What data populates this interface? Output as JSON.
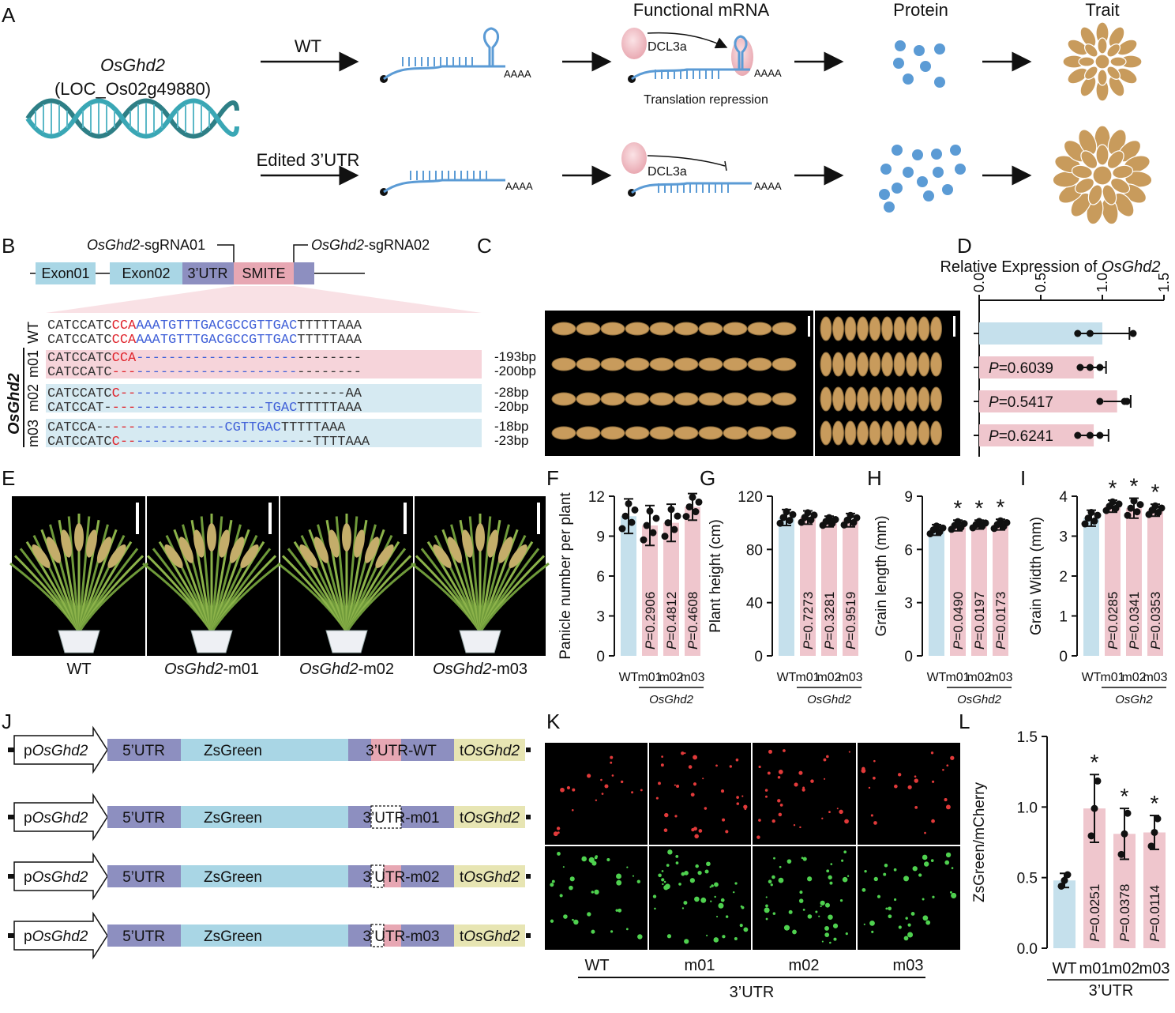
{
  "colors": {
    "blue": "#5b9bd5",
    "wt_bar": "#c5e0ec",
    "mut_bar": "#efc6cd",
    "exon": "#a9d6e5",
    "utr": "#8d8fc0",
    "smite": "#e7a7b3",
    "terminator": "#e7e5b3",
    "seq_red": "#e0242c",
    "seq_blue": "#4060d8",
    "grain": "#c89b5c"
  },
  "panelA": {
    "label": "A",
    "gene": "OsGhd2",
    "locus": "(LOC_Os02g49880)",
    "wt": "WT",
    "edited": "Edited 3’UTR",
    "polyA": "AAAA",
    "functional_mrna": "Functional mRNA",
    "dcl": "DCL3a",
    "repression": "Translation repression",
    "protein": "Protein",
    "trait": "Trait"
  },
  "panelB": {
    "label": "B",
    "sg1_gene": "OsGhd2",
    "sg1_suffix": "-sgRNA01",
    "sg2_gene": "OsGhd2",
    "sg2_suffix": "-sgRNA02",
    "exon1": "Exon01",
    "exon2": "Exon02",
    "utr": "3’UTR",
    "smite": "SMITE",
    "wt": "WT",
    "group": "OsGhd2",
    "m01": "m01",
    "m02": "m02",
    "m03": "m03",
    "sequences": [
      {
        "a": "CATCCATC",
        "b": "CCA",
        "c": "AAATGTTTGACGCCGTTGAC",
        "d": "TTTTTAAA",
        "del": ""
      },
      {
        "a": "CATCCATC",
        "b": "CCA",
        "c": "AAATGTTTGACGCCGTTGAC",
        "d": "TTTTTAAA",
        "del": ""
      },
      {
        "a": "CATCCATC",
        "b": "CCA",
        "c": "--------------------",
        "d": "--------",
        "del": "-193bp"
      },
      {
        "a": "CATCCATC",
        "b": "---",
        "c": "--------------------",
        "d": "--------",
        "del": "-200bp"
      },
      {
        "a": "CATCCATC",
        "b": "C--",
        "c": "--------------------",
        "d": "------AA",
        "del": "-28bp"
      },
      {
        "a": "CATCCAT-",
        "b": "---",
        "c": "----------------TGAC",
        "d": "TTTTTAAA",
        "del": "-20bp"
      },
      {
        "a": "CATCCA--",
        "b": "---",
        "c": "-----------CGTTGAC",
        "d": "TTTTTAAA",
        "del": "-18bp"
      },
      {
        "a": "CATCCATC",
        "b": "C--",
        "c": "--------------------",
        "d": "--TTTTAAA",
        "del": "-23bp"
      }
    ]
  },
  "panelC": {
    "label": "C"
  },
  "panelD": {
    "label": "D",
    "title_prefix": "Relative Expression of ",
    "title_gene": "OsGhd2",
    "axis_ticks": [
      "0.0",
      "0.5",
      "1.0",
      "1.5"
    ],
    "bars": [
      {
        "value": 1.0,
        "p": "",
        "points": [
          0.8,
          0.9,
          1.25
        ],
        "err": 0.22
      },
      {
        "value": 0.93,
        "p": "=0.6039",
        "points": [
          0.82,
          0.9,
          0.98
        ],
        "err": 0.1
      },
      {
        "value": 1.12,
        "p": "=0.5417",
        "points": [
          0.98,
          1.18,
          1.2
        ],
        "err": 0.11
      },
      {
        "value": 0.93,
        "p": "=0.6241",
        "points": [
          0.8,
          0.9,
          0.98
        ],
        "err": 0.12
      }
    ]
  },
  "panelE": {
    "label": "E",
    "wt": "WT",
    "prefix": "OsGhd2",
    "m01": "-m01",
    "m02": "-m02",
    "m03": "-m03"
  },
  "chart_data": [
    {
      "panel": "F",
      "type": "bar",
      "ylabel": "Panicle number per plant",
      "ylim": [
        0,
        12
      ],
      "ticks": [
        "0",
        "3",
        "6",
        "9",
        "12"
      ],
      "categories": [
        "WT",
        "m01",
        "m02",
        "m03"
      ],
      "group": "OsGhd2",
      "values": [
        10.5,
        9.8,
        10.0,
        11.2
      ],
      "err": [
        1.3,
        1.5,
        1.4,
        1.0
      ],
      "p": [
        "",
        "=0.2906",
        "=0.4812",
        "=0.4608"
      ],
      "star": [
        false,
        false,
        false,
        false
      ]
    },
    {
      "panel": "G",
      "type": "bar",
      "ylabel": "Plant height (cm)",
      "ylim": [
        0,
        120
      ],
      "ticks": [
        "0",
        "40",
        "80",
        "120"
      ],
      "categories": [
        "WT",
        "m01",
        "m02",
        "m03"
      ],
      "group": "OsGhd2",
      "values": [
        104,
        104,
        101,
        102
      ],
      "err": [
        6,
        5,
        4,
        5
      ],
      "p": [
        "",
        "=0.7273",
        "=0.3281",
        "=0.9519"
      ],
      "star": [
        false,
        false,
        false,
        false
      ]
    },
    {
      "panel": "H",
      "type": "bar",
      "ylabel": "Grain length (mm)",
      "ylim": [
        0,
        9
      ],
      "ticks": [
        "0",
        "3",
        "6",
        "9"
      ],
      "categories": [
        "WT",
        "m01",
        "m02",
        "m03"
      ],
      "group": "OsGhd2",
      "values": [
        7.1,
        7.35,
        7.4,
        7.4
      ],
      "err": [
        0.3,
        0.3,
        0.25,
        0.3
      ],
      "p": [
        "",
        "=0.0490",
        "=0.0197",
        "=0.0173"
      ],
      "star": [
        false,
        true,
        true,
        true
      ]
    },
    {
      "panel": "I",
      "type": "bar",
      "ylabel": "Grain Width (mm)",
      "ylim": [
        0,
        4
      ],
      "ticks": [
        "0",
        "1",
        "2",
        "3",
        "4"
      ],
      "categories": [
        "WT",
        "m01",
        "m02",
        "m03"
      ],
      "group": "OsGh2",
      "values": [
        3.45,
        3.75,
        3.7,
        3.65
      ],
      "err": [
        0.2,
        0.15,
        0.25,
        0.15
      ],
      "p": [
        "",
        "=0.0285",
        "=0.0341",
        "=0.0353"
      ],
      "star": [
        false,
        true,
        true,
        true
      ]
    },
    {
      "panel": "L",
      "type": "bar",
      "ylabel": "ZsGreen/mCherry",
      "ylim": [
        0,
        1.5
      ],
      "ticks": [
        "0.0",
        "0.5",
        "1.0",
        "1.5"
      ],
      "categories": [
        "WT",
        "m01",
        "m02",
        "m03"
      ],
      "group": "3’UTR",
      "values": [
        0.48,
        0.99,
        0.81,
        0.82
      ],
      "err": [
        0.05,
        0.24,
        0.18,
        0.12
      ],
      "p": [
        "",
        "=0.0251",
        "=0.0378",
        "=0.0114"
      ],
      "star": [
        false,
        true,
        true,
        true
      ]
    }
  ],
  "panelJ": {
    "label": "J",
    "promoter_prefix": "p",
    "gene": "OsGhd2",
    "utr5": "5’UTR",
    "zsgreen": "ZsGreen",
    "utr_wt": "3’UTR-WT",
    "utr_m01": "3’UTR-m01",
    "utr_m02": "3’UTR-m02",
    "utr_m03": "3’UTR-m03",
    "term_prefix": "t"
  },
  "panelK": {
    "label": "K",
    "cols": [
      "WT",
      "m01",
      "m02",
      "m03"
    ],
    "group": "3’UTR"
  }
}
